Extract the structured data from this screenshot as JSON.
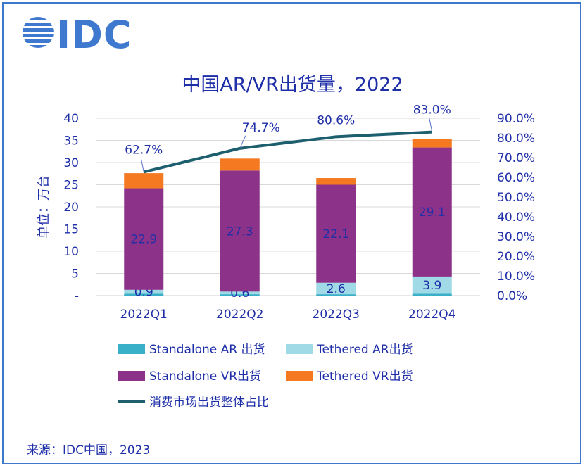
{
  "logo": {
    "text": "IDC"
  },
  "source_text": "来源：IDC中国，2023",
  "chart_data": {
    "type": "bar",
    "title": "中国AR/VR出货量，2022",
    "ylabel": "单位：万台",
    "categories": [
      "2022Q1",
      "2022Q2",
      "2022Q3",
      "2022Q4"
    ],
    "ylim": [
      0,
      40
    ],
    "y_ticks": [
      "-",
      "5",
      "10",
      "15",
      "20",
      "25",
      "30",
      "35",
      "40"
    ],
    "y2lim": [
      0,
      90
    ],
    "y2_ticks": [
      "0.0%",
      "10.0%",
      "20.0%",
      "30.0%",
      "40.0%",
      "50.0%",
      "60.0%",
      "70.0%",
      "80.0%",
      "90.0%"
    ],
    "series": [
      {
        "name": "Standalone AR 出货",
        "color": "#3ab0c8",
        "values": [
          0.4,
          0.3,
          0.3,
          0.4
        ]
      },
      {
        "name": "Tethered AR出货",
        "color": "#9fdae6",
        "values": [
          0.9,
          0.6,
          2.6,
          3.9
        ],
        "labels": [
          "0.9",
          "0.6",
          "2.6",
          "3.9"
        ]
      },
      {
        "name": "Standalone VR出货",
        "color": "#8c3289",
        "values": [
          22.9,
          27.3,
          22.1,
          29.1
        ],
        "labels": [
          "22.9",
          "27.3",
          "22.1",
          "29.1"
        ]
      },
      {
        "name": "Tethered VR出货",
        "color": "#f47920",
        "values": [
          3.4,
          2.7,
          1.5,
          2.0
        ]
      }
    ],
    "line_series": {
      "name": "消费市场出货整体占比",
      "color": "#1d5f6e",
      "values": [
        62.7,
        74.7,
        80.6,
        83.0
      ],
      "labels": [
        "62.7%",
        "74.7%",
        "80.6%",
        "83.0%"
      ]
    },
    "legend_position": "bottom"
  }
}
